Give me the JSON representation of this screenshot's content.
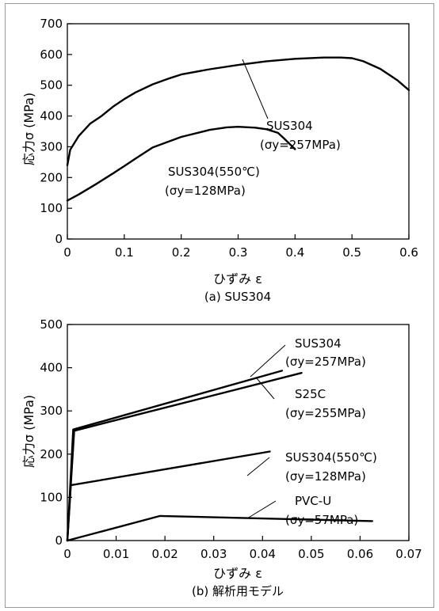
{
  "chart_data": [
    {
      "type": "line",
      "caption": "(a) SUS304",
      "xlabel": "ひずみ ε",
      "ylabel": "応力σ (MPa)",
      "xlim": [
        0,
        0.6
      ],
      "ylim": [
        0,
        700
      ],
      "xticks": [
        "0",
        "0.1",
        "0.2",
        "0.3",
        "0.4",
        "0.5",
        "0.6"
      ],
      "yticks": [
        "0",
        "100",
        "200",
        "300",
        "400",
        "500",
        "600",
        "700"
      ],
      "grid": false,
      "series": [
        {
          "annotation": [
            "SUS304",
            "(σy=257MPa)"
          ],
          "x": [
            0,
            0.005,
            0.02,
            0.04,
            0.06,
            0.08,
            0.1,
            0.12,
            0.15,
            0.18,
            0.2,
            0.25,
            0.3,
            0.35,
            0.4,
            0.45,
            0.48,
            0.5,
            0.52,
            0.55,
            0.58,
            0.6
          ],
          "y": [
            240,
            290,
            335,
            375,
            400,
            430,
            455,
            477,
            503,
            523,
            535,
            552,
            566,
            578,
            586,
            590,
            590,
            588,
            578,
            553,
            516,
            484
          ]
        },
        {
          "annotation": [
            "SUS304(550℃)",
            "(σy=128MPa)"
          ],
          "x": [
            0,
            0.02,
            0.05,
            0.08,
            0.1,
            0.12,
            0.15,
            0.2,
            0.25,
            0.28,
            0.3,
            0.33,
            0.35,
            0.37,
            0.38,
            0.39,
            0.4
          ],
          "y": [
            125,
            145,
            178,
            213,
            237,
            262,
            298,
            332,
            355,
            363,
            365,
            362,
            357,
            345,
            328,
            310,
            292
          ]
        }
      ]
    },
    {
      "type": "line",
      "caption": "(b) 解析用モデル",
      "xlabel": "ひずみ ε",
      "ylabel": "応力σ (MPa)",
      "xlim": [
        0,
        0.07
      ],
      "ylim": [
        0,
        500
      ],
      "xticks": [
        "0",
        "0.01",
        "0.02",
        "0.03",
        "0.04",
        "0.05",
        "0.06",
        "0.07"
      ],
      "yticks": [
        "0",
        "100",
        "200",
        "300",
        "400",
        "500"
      ],
      "grid": false,
      "series": [
        {
          "annotation": [
            "SUS304",
            "(σy=257MPa)"
          ],
          "x": [
            0,
            0.0012,
            0.044
          ],
          "y": [
            0,
            257,
            393
          ]
        },
        {
          "annotation": [
            "S25C",
            "(σy=255MPa)"
          ],
          "x": [
            0,
            0.0014,
            0.048
          ],
          "y": [
            0,
            254,
            388
          ]
        },
        {
          "annotation": [
            "SUS304(550℃)",
            "(σy=128MPa)"
          ],
          "x": [
            0,
            0.0007,
            0.0415
          ],
          "y": [
            0,
            128,
            206
          ]
        },
        {
          "annotation": [
            "PVC-U",
            "(σy=57MPa)"
          ],
          "x": [
            0,
            0.019,
            0.0625
          ],
          "y": [
            0,
            57,
            45
          ]
        }
      ]
    }
  ]
}
